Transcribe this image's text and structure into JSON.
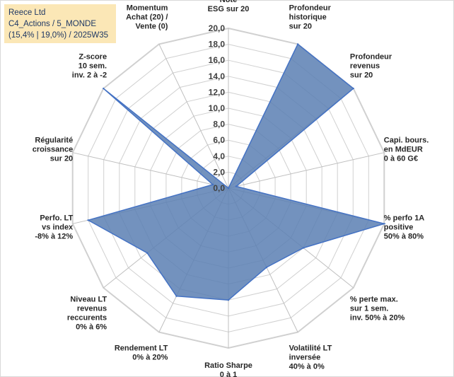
{
  "info": {
    "line1": "Reece Ltd",
    "line2": "C4_Actions / 5_MONDE",
    "line3": "(15,4% | 19,0%) / 2025W35"
  },
  "chart_data": {
    "type": "radar",
    "title": "",
    "rlim": [
      0,
      20
    ],
    "ticks": [
      "0,0",
      "2,0",
      "4,0",
      "6,0",
      "8,0",
      "10,0",
      "12,0",
      "14,0",
      "16,0",
      "18,0",
      "20,0"
    ],
    "grid": true,
    "categories": [
      [
        "Note",
        "ESG sur 20"
      ],
      [
        "Profondeur",
        "historique",
        "sur 20"
      ],
      [
        "Profondeur",
        "revenus",
        "sur 20"
      ],
      [
        "Capi. bours.",
        "en MdEUR",
        "0 à 60 G€"
      ],
      [
        "% perfo 1A",
        "positive",
        "50% à 80%"
      ],
      [
        "% perte max.",
        "sur 1 sem.",
        "inv. 50% à 20%"
      ],
      [
        "Volatilité LT",
        "inversée",
        "40% à 0%"
      ],
      [
        "Ratio Sharpe",
        "0 à 1"
      ],
      [
        "Rendement LT",
        "0% à 20%"
      ],
      [
        "Niveau LT",
        "revenus",
        "reccurents",
        "0% à 6%"
      ],
      [
        "Perfo. LT",
        "vs index",
        "-8% à 12%"
      ],
      [
        "Régularité",
        "croissance",
        "sur 20"
      ],
      [
        "Z-score",
        "10 sem.",
        "inv. 2 à -2"
      ],
      [
        "Momentum",
        "Achat (20) /",
        "Vente (0)"
      ]
    ],
    "series": [
      {
        "values": [
          0,
          20,
          20,
          1,
          20,
          12,
          11,
          14,
          15,
          13,
          18,
          2,
          20,
          0
        ]
      }
    ],
    "colors": {
      "fill": "#5b7fb3",
      "stroke": "#4472c4",
      "grid": "#d0d0d0",
      "spokes": "#bfbfbf"
    }
  }
}
